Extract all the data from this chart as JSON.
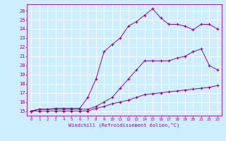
{
  "xlabel": "Windchill (Refroidissement éolien,°C)",
  "bg_color": "#cceeff",
  "line_color": "#990099",
  "xlim": [
    -0.5,
    23.5
  ],
  "ylim": [
    14.5,
    26.7
  ],
  "xticks": [
    0,
    1,
    2,
    3,
    4,
    5,
    6,
    7,
    8,
    9,
    10,
    11,
    12,
    13,
    14,
    15,
    16,
    17,
    18,
    19,
    20,
    21,
    22,
    23
  ],
  "yticks": [
    15,
    16,
    17,
    18,
    19,
    20,
    21,
    22,
    23,
    24,
    25,
    26
  ],
  "line1_x": [
    0,
    1,
    2,
    3,
    4,
    5,
    6,
    7,
    8,
    9,
    10,
    11,
    12,
    13,
    14,
    15,
    16,
    17,
    18,
    19,
    20,
    21,
    22,
    23
  ],
  "line1_y": [
    15.0,
    15.0,
    15.0,
    15.0,
    15.0,
    15.0,
    15.0,
    15.0,
    15.3,
    15.5,
    15.8,
    16.0,
    16.2,
    16.5,
    16.8,
    16.9,
    17.0,
    17.1,
    17.2,
    17.3,
    17.4,
    17.5,
    17.6,
    17.8
  ],
  "line2_x": [
    0,
    1,
    2,
    3,
    4,
    5,
    6,
    7,
    8,
    9,
    10,
    11,
    12,
    13,
    14,
    15,
    16,
    17,
    18,
    19,
    20,
    21,
    22,
    23
  ],
  "line2_y": [
    15.0,
    15.2,
    15.2,
    15.2,
    15.2,
    15.2,
    15.2,
    15.2,
    15.5,
    16.0,
    16.5,
    17.5,
    18.5,
    19.5,
    20.5,
    20.5,
    20.5,
    20.5,
    20.8,
    21.0,
    21.5,
    21.8,
    20.0,
    19.5
  ],
  "line3_x": [
    0,
    1,
    2,
    3,
    4,
    5,
    6,
    7,
    8,
    9,
    10,
    11,
    12,
    13,
    14,
    15,
    16,
    17,
    18,
    19,
    20,
    21,
    22,
    23
  ],
  "line3_y": [
    15.0,
    15.2,
    15.2,
    15.3,
    15.3,
    15.3,
    15.3,
    16.5,
    18.5,
    21.5,
    22.3,
    23.0,
    24.3,
    24.8,
    25.5,
    26.2,
    25.2,
    24.5,
    24.5,
    24.3,
    23.9,
    24.5,
    24.5,
    24.0
  ]
}
